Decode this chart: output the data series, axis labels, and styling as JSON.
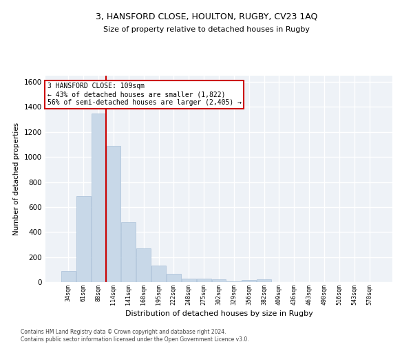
{
  "title": "3, HANSFORD CLOSE, HOULTON, RUGBY, CV23 1AQ",
  "subtitle": "Size of property relative to detached houses in Rugby",
  "xlabel": "Distribution of detached houses by size in Rugby",
  "ylabel": "Number of detached properties",
  "bar_color": "#c8d8e8",
  "bar_edgecolor": "#a8c0d8",
  "categories": [
    "34sqm",
    "61sqm",
    "88sqm",
    "114sqm",
    "141sqm",
    "168sqm",
    "195sqm",
    "222sqm",
    "248sqm",
    "275sqm",
    "302sqm",
    "329sqm",
    "356sqm",
    "382sqm",
    "409sqm",
    "436sqm",
    "463sqm",
    "490sqm",
    "516sqm",
    "543sqm",
    "570sqm"
  ],
  "values": [
    88,
    688,
    1350,
    1090,
    480,
    270,
    130,
    65,
    28,
    30,
    20,
    5,
    18,
    20,
    0,
    0,
    0,
    0,
    0,
    0,
    0
  ],
  "annotation_text": "3 HANSFORD CLOSE: 109sqm\n← 43% of detached houses are smaller (1,822)\n56% of semi-detached houses are larger (2,405) →",
  "annotation_box_color": "white",
  "annotation_box_edgecolor": "#cc0000",
  "vline_color": "#cc0000",
  "vline_x_index": 2,
  "ylim": [
    0,
    1650
  ],
  "yticks": [
    0,
    200,
    400,
    600,
    800,
    1000,
    1200,
    1400,
    1600
  ],
  "footnote": "Contains HM Land Registry data © Crown copyright and database right 2024.\nContains public sector information licensed under the Open Government Licence v3.0.",
  "background_color": "#eef2f7",
  "grid_color": "white",
  "title_fontsize": 9,
  "subtitle_fontsize": 8,
  "ylabel_fontsize": 7.5,
  "xlabel_fontsize": 8,
  "ytick_fontsize": 7.5,
  "xtick_fontsize": 6,
  "annotation_fontsize": 7,
  "footnote_fontsize": 5.5
}
